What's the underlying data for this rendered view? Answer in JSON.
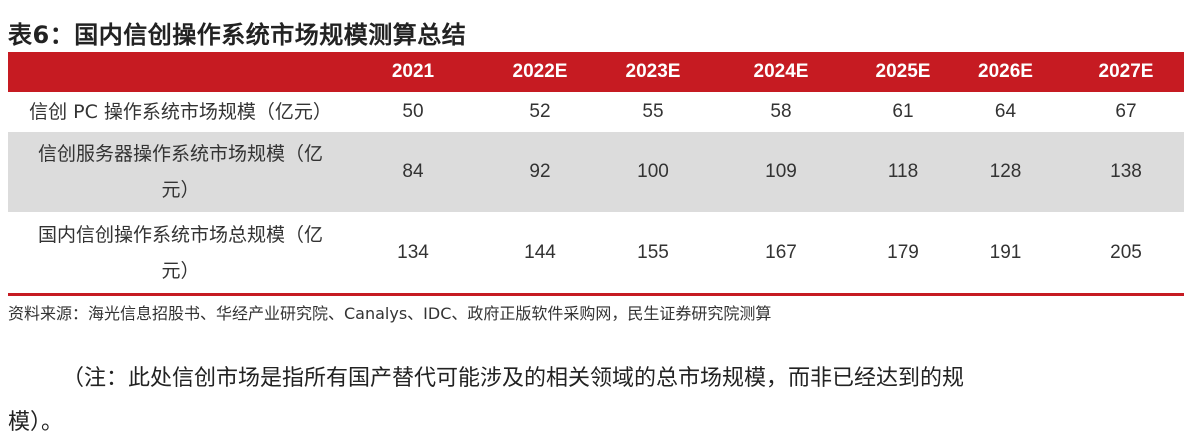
{
  "title": "表6：国内信创操作系统市场规模测算总结",
  "table": {
    "headers": [
      "",
      "2021",
      "2022E",
      "2023E",
      "2024E",
      "2025E",
      "2026E",
      "2027E"
    ],
    "rows": [
      {
        "label": "信创 PC 操作系统市场规模（亿元）",
        "values": [
          "50",
          "52",
          "55",
          "58",
          "61",
          "64",
          "67"
        ]
      },
      {
        "label": "信创服务器操作系统市场规模（亿元）",
        "values": [
          "84",
          "92",
          "100",
          "109",
          "118",
          "128",
          "138"
        ]
      },
      {
        "label": "国内信创操作系统市场总规模（亿元）",
        "values": [
          "134",
          "144",
          "155",
          "167",
          "179",
          "191",
          "205"
        ]
      }
    ]
  },
  "source": "资料来源：海光信息招股书、华经产业研究院、Canalys、IDC、政府正版软件采购网，民生证券研究院测算",
  "note": "（注：此处信创市场是指所有国产替代可能涉及的相关领域的总市场规模，而非已经达到的规模）。",
  "colors": {
    "header_bg": "#c61b22",
    "alt_row_bg": "#dcdcdc"
  }
}
